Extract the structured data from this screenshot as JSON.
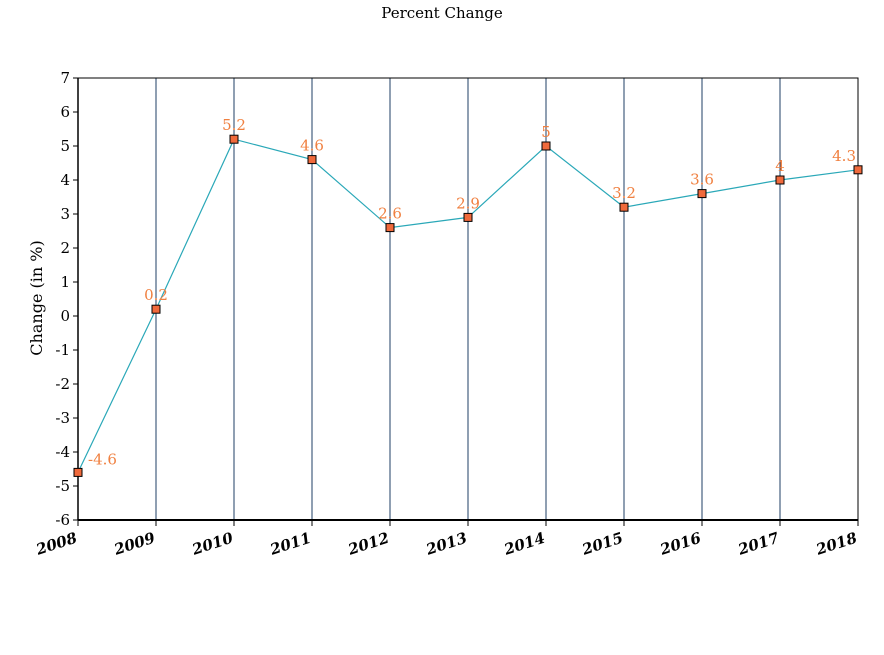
{
  "chart_data": {
    "type": "line",
    "title": "Percent Change",
    "xlabel": "",
    "ylabel": "Change (in %)",
    "categories": [
      "2008",
      "2009",
      "2010",
      "2011",
      "2012",
      "2013",
      "2014",
      "2015",
      "2016",
      "2017",
      "2018"
    ],
    "series": [
      {
        "values": [
          -4.6,
          0.2,
          5.2,
          4.6,
          2.6,
          2.9,
          5,
          3.2,
          3.6,
          4,
          4.3
        ]
      }
    ],
    "data_labels": [
      "-4.6",
      "0.2",
      "5.2",
      "4.6",
      "2.6",
      "2.9",
      "5",
      "3.2",
      "3.6",
      "4",
      "4.3"
    ],
    "ylim": [
      -6,
      7
    ],
    "yticks": [
      "7",
      "6",
      "5",
      "4",
      "3",
      "2",
      "1",
      "0",
      "-1",
      "-2",
      "-3",
      "-4",
      "-5",
      "-6"
    ],
    "grid": "vertical",
    "legend": "none",
    "colors": {
      "line": "#2aa8b8",
      "marker_fill": "#f06a3c",
      "marker_stroke": "#000000",
      "label": "#f08040",
      "grid": "#1f3f66",
      "axis": "#000000"
    }
  }
}
